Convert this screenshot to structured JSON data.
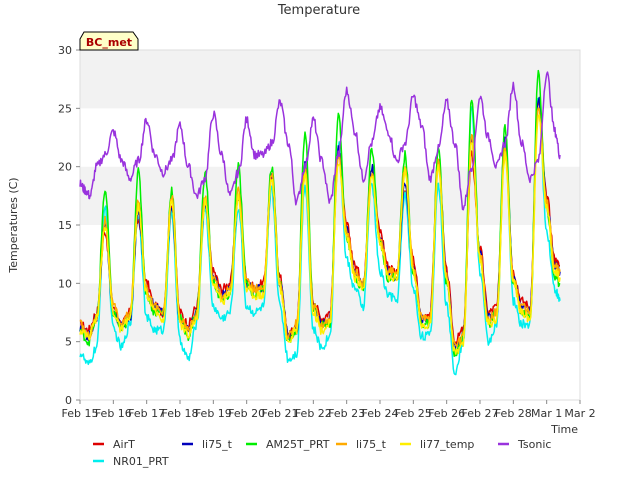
{
  "chart_data": {
    "type": "line",
    "title": "Temperature",
    "xlabel": "Time",
    "ylabel": "Temperatures (C)",
    "badge": "BC_met",
    "ylim": [
      0,
      30
    ],
    "yticks": [
      0,
      5,
      10,
      15,
      20,
      25,
      30
    ],
    "xlim": [
      0,
      15
    ],
    "xticks": [
      {
        "x": 0,
        "label": "Feb 15"
      },
      {
        "x": 1,
        "label": "Feb 16"
      },
      {
        "x": 2,
        "label": "Feb 17"
      },
      {
        "x": 3,
        "label": "Feb 18"
      },
      {
        "x": 4,
        "label": "Feb 19"
      },
      {
        "x": 5,
        "label": "Feb 20"
      },
      {
        "x": 6,
        "label": "Feb 21"
      },
      {
        "x": 7,
        "label": "Feb 22"
      },
      {
        "x": 8,
        "label": "Feb 23"
      },
      {
        "x": 9,
        "label": "Feb 24"
      },
      {
        "x": 10,
        "label": "Feb 25"
      },
      {
        "x": 11,
        "label": "Feb 26"
      },
      {
        "x": 12,
        "label": "Feb 27"
      },
      {
        "x": 13,
        "label": "Feb 28"
      },
      {
        "x": 14,
        "label": "Mar 1"
      },
      {
        "x": 15,
        "label": "Mar 2"
      }
    ],
    "grid": "alternating horizontal bands",
    "legend_position": "bottom",
    "x_unit": "days since Feb 15",
    "series": [
      {
        "name": "AirT",
        "color": "#dd0000",
        "x": [
          0,
          0.25,
          0.5,
          0.75,
          1,
          1.25,
          1.5,
          1.75,
          2,
          2.25,
          2.5,
          2.75,
          3,
          3.25,
          3.5,
          3.75,
          4,
          4.25,
          4.5,
          4.75,
          5,
          5.25,
          5.5,
          5.75,
          6,
          6.25,
          6.5,
          6.75,
          7,
          7.25,
          7.5,
          7.75,
          8,
          8.25,
          8.5,
          8.75,
          9,
          9.25,
          9.5,
          9.75,
          10,
          10.25,
          10.5,
          10.75,
          11,
          11.25,
          11.5,
          11.75,
          12,
          12.25,
          12.5,
          12.75,
          13,
          13.25,
          13.5,
          13.75,
          14,
          14.25,
          14.4
        ],
        "y": [
          6.5,
          6.0,
          7.5,
          14.5,
          8.0,
          6.5,
          7.5,
          15.5,
          10.0,
          8.0,
          7.5,
          16.5,
          7.5,
          6.5,
          8.0,
          17.0,
          11.0,
          9.5,
          10.0,
          17.5,
          10.5,
          9.5,
          10.0,
          19.0,
          10.5,
          5.5,
          6.5,
          20.0,
          8.5,
          7.0,
          7.5,
          21.0,
          15.0,
          11.5,
          10.0,
          20.0,
          14.5,
          11.5,
          11.0,
          18.0,
          12.0,
          7.0,
          7.5,
          20.5,
          11.0,
          5.0,
          6.0,
          21.0,
          13.0,
          7.5,
          8.0,
          22.0,
          11.0,
          8.5,
          8.0,
          25.5,
          17.5,
          12.0,
          11.5
        ]
      },
      {
        "name": "NR01_PRT",
        "color": "#00eeee",
        "x": [
          0,
          0.25,
          0.5,
          0.75,
          1,
          1.25,
          1.5,
          1.75,
          2,
          2.25,
          2.5,
          2.75,
          3,
          3.25,
          3.5,
          3.75,
          4,
          4.25,
          4.5,
          4.75,
          5,
          5.25,
          5.5,
          5.75,
          6,
          6.25,
          6.5,
          6.75,
          7,
          7.25,
          7.5,
          7.75,
          8,
          8.25,
          8.5,
          8.75,
          9,
          9.25,
          9.5,
          9.75,
          10,
          10.25,
          10.5,
          10.75,
          11,
          11.25,
          11.5,
          11.75,
          12,
          12.25,
          12.5,
          12.75,
          13,
          13.25,
          13.5,
          13.75,
          14,
          14.25,
          14.4
        ],
        "y": [
          4.0,
          3.0,
          4.5,
          16.5,
          6.0,
          4.5,
          6.5,
          16.0,
          7.0,
          6.0,
          6.0,
          16.0,
          5.0,
          3.5,
          6.5,
          16.5,
          8.0,
          7.0,
          7.5,
          16.5,
          8.0,
          7.5,
          8.0,
          18.0,
          8.0,
          3.5,
          4.0,
          18.5,
          6.0,
          4.5,
          5.5,
          22.0,
          12.0,
          9.5,
          8.0,
          18.5,
          11.0,
          9.0,
          8.5,
          17.5,
          9.5,
          5.5,
          5.5,
          18.5,
          8.0,
          2.5,
          5.0,
          25.0,
          11.0,
          5.0,
          6.5,
          22.0,
          8.5,
          6.5,
          6.5,
          26.0,
          14.5,
          9.5,
          8.5
        ]
      },
      {
        "name": "li75_t",
        "color": "#0000bb",
        "x": [
          0,
          0.25,
          0.5,
          0.75,
          1,
          1.25,
          1.5,
          1.75,
          2,
          2.25,
          2.5,
          2.75,
          3,
          3.25,
          3.5,
          3.75,
          4,
          4.25,
          4.5,
          4.75,
          5,
          5.25,
          5.5,
          5.75,
          6,
          6.25,
          6.5,
          6.75,
          7,
          7.25,
          7.5,
          7.75,
          8,
          8.25,
          8.5,
          8.75,
          9,
          9.25,
          9.5,
          9.75,
          10,
          10.25,
          10.5,
          10.75,
          11,
          11.25,
          11.5,
          11.75,
          12,
          12.25,
          12.5,
          12.75,
          13,
          13.25,
          13.5,
          13.75,
          14,
          14.25,
          14.4
        ],
        "y": [
          6.0,
          5.5,
          7.0,
          15.0,
          7.5,
          6.5,
          7.0,
          16.0,
          9.5,
          8.0,
          7.5,
          16.5,
          7.0,
          6.0,
          7.5,
          17.0,
          10.5,
          9.0,
          9.5,
          17.5,
          10.0,
          9.5,
          9.5,
          19.0,
          10.0,
          5.5,
          6.0,
          20.5,
          8.0,
          6.5,
          7.0,
          21.5,
          14.5,
          11.0,
          10.0,
          20.0,
          14.0,
          11.0,
          10.5,
          18.5,
          11.5,
          7.0,
          7.0,
          20.5,
          10.5,
          4.5,
          5.5,
          22.5,
          12.5,
          7.0,
          7.5,
          22.5,
          10.5,
          8.0,
          7.5,
          26.0,
          17.0,
          11.5,
          11.0
        ]
      },
      {
        "name": "AM25T_PRT",
        "color": "#00ee00",
        "x": [
          0,
          0.25,
          0.5,
          0.75,
          1,
          1.25,
          1.5,
          1.75,
          2,
          2.25,
          2.5,
          2.75,
          3,
          3.25,
          3.5,
          3.75,
          4,
          4.25,
          4.5,
          4.75,
          5,
          5.25,
          5.5,
          5.75,
          6,
          6.25,
          6.5,
          6.75,
          7,
          7.25,
          7.5,
          7.75,
          8,
          8.25,
          8.5,
          8.75,
          9,
          9.25,
          9.5,
          9.75,
          10,
          10.25,
          10.5,
          10.75,
          11,
          11.25,
          11.5,
          11.75,
          12,
          12.25,
          12.5,
          12.75,
          13,
          13.25,
          13.5,
          13.75,
          14,
          14.25,
          14.4
        ],
        "y": [
          6.0,
          5.0,
          7.0,
          18.0,
          7.5,
          6.0,
          7.0,
          19.5,
          9.0,
          7.5,
          7.5,
          18.0,
          7.0,
          5.5,
          7.5,
          19.5,
          10.0,
          8.5,
          9.0,
          20.0,
          10.0,
          9.0,
          9.5,
          20.0,
          10.0,
          5.0,
          6.0,
          23.0,
          8.0,
          6.5,
          6.5,
          24.5,
          14.0,
          10.5,
          9.5,
          21.5,
          13.5,
          10.5,
          10.5,
          21.0,
          11.0,
          6.5,
          6.5,
          21.5,
          10.0,
          4.0,
          5.5,
          26.0,
          12.0,
          6.5,
          7.5,
          23.5,
          10.0,
          7.5,
          7.0,
          28.0,
          16.5,
          10.5,
          10.0
        ]
      },
      {
        "name": "li75_t",
        "color": "#ffaa00",
        "x": [
          0,
          0.25,
          0.5,
          0.75,
          1,
          1.25,
          1.5,
          1.75,
          2,
          2.25,
          2.5,
          2.75,
          3,
          3.25,
          3.5,
          3.75,
          4,
          4.25,
          4.5,
          4.75,
          5,
          5.25,
          5.5,
          5.75,
          6,
          6.25,
          6.5,
          6.75,
          7,
          7.25,
          7.5,
          7.75,
          8,
          8.25,
          8.5,
          8.75,
          9,
          9.25,
          9.5,
          9.75,
          10,
          10.25,
          10.5,
          10.75,
          11,
          11.25,
          11.5,
          11.75,
          12,
          12.25,
          12.5,
          12.75,
          13,
          13.25,
          13.5,
          13.75,
          14,
          14.25,
          14.4
        ],
        "y": [
          6.5,
          5.5,
          7.0,
          15.5,
          8.0,
          6.5,
          7.5,
          17.0,
          9.5,
          8.0,
          7.5,
          17.5,
          7.0,
          6.0,
          7.5,
          17.5,
          10.5,
          9.0,
          9.5,
          18.0,
          10.0,
          9.5,
          9.5,
          19.5,
          10.0,
          5.5,
          6.5,
          20.0,
          8.0,
          6.5,
          7.0,
          21.0,
          14.5,
          11.0,
          10.0,
          19.5,
          14.0,
          11.0,
          11.0,
          20.0,
          11.5,
          7.0,
          7.0,
          20.5,
          10.5,
          4.5,
          5.5,
          22.5,
          12.5,
          7.0,
          7.5,
          21.5,
          10.5,
          8.0,
          7.5,
          25.0,
          17.0,
          11.5,
          11.0
        ]
      },
      {
        "name": "li77_temp",
        "color": "#ffee00",
        "x": [
          0,
          0.25,
          0.5,
          0.75,
          1,
          1.25,
          1.5,
          1.75,
          2,
          2.25,
          2.5,
          2.75,
          3,
          3.25,
          3.5,
          3.75,
          4,
          4.25,
          4.5,
          4.75,
          5,
          5.25,
          5.5,
          5.75,
          6,
          6.25,
          6.5,
          6.75,
          7,
          7.25,
          7.5,
          7.75,
          8,
          8.25,
          8.5,
          8.75,
          9,
          9.25,
          9.5,
          9.75,
          10,
          10.25,
          10.5,
          10.75,
          11,
          11.25,
          11.5,
          11.75,
          12,
          12.25,
          12.5,
          12.75,
          13,
          13.25,
          13.5,
          13.75,
          14,
          14.25,
          14.4
        ],
        "y": [
          6.0,
          5.5,
          7.0,
          15.0,
          7.5,
          6.0,
          7.0,
          16.5,
          9.0,
          7.5,
          7.0,
          17.0,
          6.5,
          5.5,
          7.0,
          17.0,
          10.0,
          8.5,
          9.0,
          17.5,
          9.5,
          9.0,
          9.0,
          19.0,
          9.5,
          5.0,
          6.0,
          19.5,
          7.5,
          6.0,
          6.5,
          20.5,
          14.0,
          10.5,
          9.5,
          19.0,
          13.5,
          10.5,
          10.5,
          19.5,
          11.0,
          6.5,
          6.5,
          20.0,
          10.0,
          4.0,
          5.0,
          22.0,
          12.0,
          6.5,
          7.0,
          21.0,
          10.0,
          7.5,
          7.0,
          24.5,
          16.5,
          11.0,
          10.5
        ]
      },
      {
        "name": "Tsonic",
        "color": "#9933dd",
        "x": [
          0,
          0.15,
          0.3,
          0.5,
          0.75,
          1,
          1.25,
          1.5,
          1.75,
          2,
          2.25,
          2.5,
          2.75,
          3,
          3.25,
          3.5,
          3.75,
          4,
          4.25,
          4.5,
          4.75,
          5,
          5.25,
          5.5,
          5.75,
          6,
          6.25,
          6.5,
          6.75,
          7,
          7.25,
          7.5,
          7.75,
          8,
          8.25,
          8.5,
          8.75,
          9,
          9.25,
          9.5,
          9.75,
          10,
          10.25,
          10.5,
          10.75,
          11,
          11.25,
          11.5,
          11.75,
          12,
          12.25,
          12.5,
          12.75,
          13,
          13.25,
          13.5,
          13.75,
          14,
          14.25,
          14.4
        ],
        "y": [
          18.5,
          18.0,
          17.5,
          20.0,
          21.0,
          23.0,
          20.5,
          19.0,
          20.5,
          24.0,
          21.0,
          19.5,
          20.5,
          23.5,
          20.0,
          17.5,
          19.0,
          24.5,
          21.0,
          17.5,
          19.5,
          24.0,
          21.0,
          21.0,
          22.0,
          25.5,
          22.0,
          17.0,
          20.0,
          24.0,
          20.5,
          17.0,
          21.0,
          26.5,
          23.0,
          19.0,
          22.0,
          25.0,
          23.0,
          20.5,
          22.0,
          26.0,
          23.5,
          19.0,
          21.5,
          25.5,
          22.0,
          16.5,
          20.0,
          26.0,
          22.5,
          20.0,
          22.0,
          27.0,
          22.0,
          19.0,
          20.5,
          28.0,
          23.0,
          21.0
        ]
      }
    ]
  }
}
